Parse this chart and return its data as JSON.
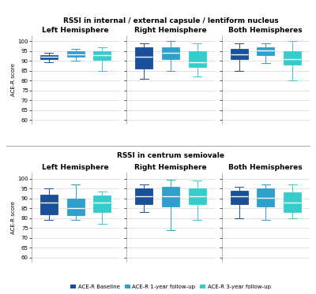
{
  "title1": "RSSI in internal / external capsule / lentiform nucleus",
  "title2": "RSSI in centrum semiovale",
  "subplot_titles": [
    "Left Hemisphere",
    "Right Hemisphere",
    "Both Hemispheres"
  ],
  "ylabel": "ACE-R score",
  "colors": {
    "baseline": "#1a4f99",
    "year1": "#2fa0cc",
    "year3": "#36cccc"
  },
  "legend_labels": [
    "ACE-R Baseline",
    "ACE-R 1-year follow-up",
    "ACE-R 3-year follow-up"
  ],
  "ylim": [
    58,
    103
  ],
  "yticks": [
    60,
    65,
    70,
    75,
    80,
    85,
    90,
    95,
    100
  ],
  "row1": {
    "left": {
      "baseline": {
        "whislo": 89.5,
        "q1": 91.0,
        "med": 92.0,
        "q3": 93.0,
        "whishi": 94.0
      },
      "year1": {
        "whislo": 90.0,
        "q1": 92.0,
        "med": 93.5,
        "q3": 95.0,
        "whishi": 96.0
      },
      "year3": {
        "whislo": 85.0,
        "q1": 90.5,
        "med": 93.0,
        "q3": 95.0,
        "whishi": 97.0
      }
    },
    "right": {
      "baseline": {
        "whislo": 81.0,
        "q1": 86.0,
        "med": 92.0,
        "q3": 97.0,
        "whishi": 99.0
      },
      "year1": {
        "whislo": 85.0,
        "q1": 91.0,
        "med": 94.0,
        "q3": 97.0,
        "whishi": 100.0
      },
      "year3": {
        "whislo": 82.0,
        "q1": 87.0,
        "med": 89.5,
        "q3": 95.0,
        "whishi": 99.0
      }
    },
    "both": {
      "baseline": {
        "whislo": 85.0,
        "q1": 91.0,
        "med": 93.5,
        "q3": 96.0,
        "whishi": 99.0
      },
      "year1": {
        "whislo": 89.0,
        "q1": 93.0,
        "med": 95.5,
        "q3": 97.0,
        "whishi": 99.0
      },
      "year3": {
        "whislo": 80.0,
        "q1": 88.0,
        "med": 91.0,
        "q3": 95.0,
        "whishi": 100.0
      }
    }
  },
  "row2": {
    "left": {
      "baseline": {
        "whislo": 79.0,
        "q1": 82.0,
        "med": 88.0,
        "q3": 92.0,
        "whishi": 95.0
      },
      "year1": {
        "whislo": 79.0,
        "q1": 81.5,
        "med": 85.0,
        "q3": 90.0,
        "whishi": 97.0
      },
      "year3": {
        "whislo": 77.0,
        "q1": 83.0,
        "med": 88.0,
        "q3": 91.5,
        "whishi": 93.5
      }
    },
    "right": {
      "baseline": {
        "whislo": 83.0,
        "q1": 87.0,
        "med": 91.0,
        "q3": 95.0,
        "whishi": 97.0
      },
      "year1": {
        "whislo": 74.0,
        "q1": 86.0,
        "med": 91.0,
        "q3": 96.0,
        "whishi": 99.5
      },
      "year3": {
        "whislo": 79.0,
        "q1": 87.0,
        "med": 91.0,
        "q3": 95.0,
        "whishi": 99.0
      }
    },
    "both": {
      "baseline": {
        "whislo": 80.0,
        "q1": 87.0,
        "med": 91.0,
        "q3": 94.0,
        "whishi": 96.0
      },
      "year1": {
        "whislo": 79.0,
        "q1": 86.0,
        "med": 90.5,
        "q3": 95.0,
        "whishi": 97.0
      },
      "year3": {
        "whislo": 80.0,
        "q1": 83.0,
        "med": 88.0,
        "q3": 93.0,
        "whishi": 97.0
      }
    }
  }
}
